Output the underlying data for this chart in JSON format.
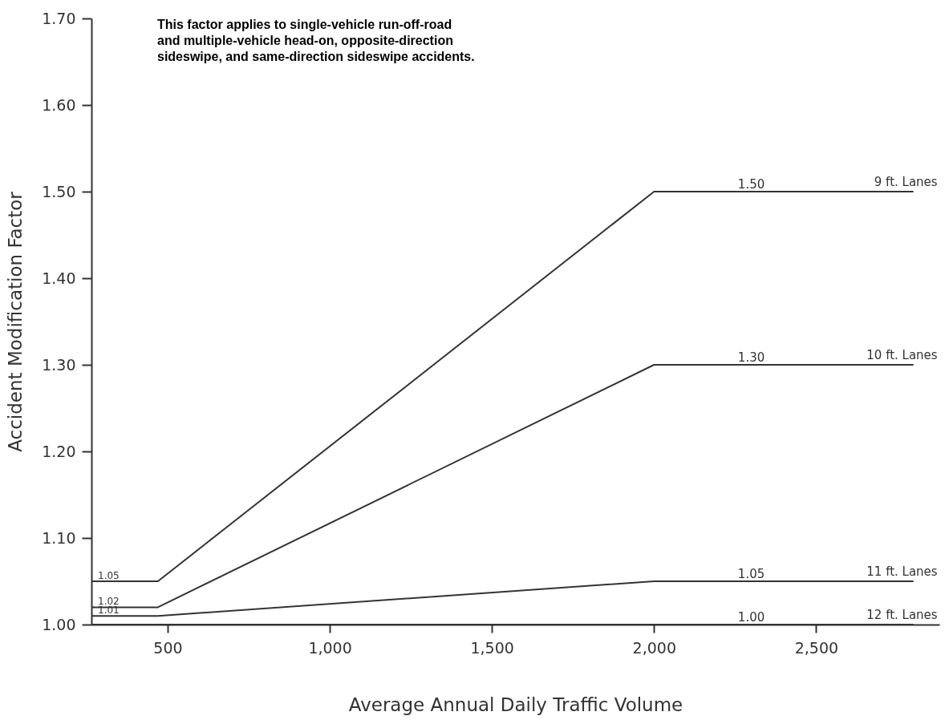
{
  "chart_data": {
    "type": "line",
    "xlabel": "Average Annual Daily Traffic Volume",
    "ylabel": "Accident Modification Factor",
    "x": [
      265,
      470,
      2000,
      2300,
      2800
    ],
    "series": [
      {
        "name": "9 ft. Lanes",
        "color": "#333333",
        "values": [
          1.05,
          1.05,
          1.5,
          1.5,
          1.5
        ],
        "value_labels": [
          "1.05",
          null,
          null,
          "1.50",
          null
        ]
      },
      {
        "name": "10 ft. Lanes",
        "color": "#333333",
        "values": [
          1.02,
          1.02,
          1.3,
          1.3,
          1.3
        ],
        "value_labels": [
          "1.02",
          null,
          null,
          "1.30",
          null
        ]
      },
      {
        "name": "11 ft. Lanes",
        "color": "#333333",
        "values": [
          1.01,
          1.01,
          1.05,
          1.05,
          1.05
        ],
        "value_labels": [
          "1.01",
          null,
          null,
          "1.05",
          null
        ]
      },
      {
        "name": "12 ft. Lanes",
        "color": "#333333",
        "values": [
          1.0,
          1.0,
          1.0,
          1.0,
          1.0
        ],
        "value_labels": [
          null,
          null,
          null,
          "1.00",
          null
        ]
      }
    ],
    "xlim": [
      265,
      2880
    ],
    "ylim": [
      1.0,
      1.7
    ],
    "xticks": [
      500,
      {
        "value": 1000,
        "label": "1,000"
      },
      {
        "value": 1500,
        "label": "1,500"
      },
      {
        "value": 2000,
        "label": "2,000"
      },
      {
        "value": 2500,
        "label": "2,500"
      }
    ],
    "yticks": [
      {
        "value": 1.0,
        "label": "1.00"
      },
      {
        "value": 1.1,
        "label": "1.10"
      },
      {
        "value": 1.2,
        "label": "1.20"
      },
      {
        "value": 1.3,
        "label": "1.30"
      },
      {
        "value": 1.4,
        "label": "1.40"
      },
      {
        "value": 1.5,
        "label": "1.50"
      },
      {
        "value": 1.6,
        "label": "1.60"
      },
      {
        "value": 1.7,
        "label": "1.70"
      }
    ],
    "grid": false,
    "line_style": "solid",
    "annotations": [
      "This factor applies to single-vehicle run-off-road and multiple-vehicle head-on, opposite-direction sideswipe, and same-direction sideswipe accidents."
    ]
  }
}
